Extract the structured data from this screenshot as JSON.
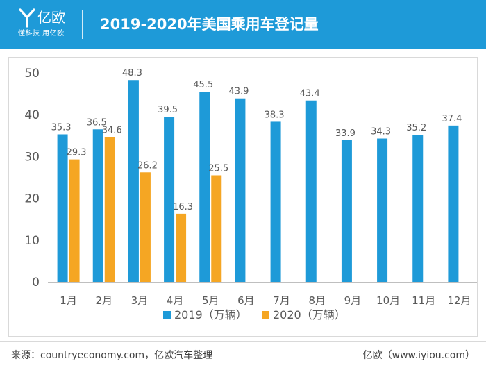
{
  "header": {
    "logo_name": "亿欧",
    "logo_slogan": "懂科技 用亿欧",
    "title": "2019-2020年美国乘用车登记量"
  },
  "colors": {
    "header_bg": "#1e9ad8",
    "series_2019": "#1e9ad8",
    "series_2020": "#f5a623",
    "axis_text": "#595959"
  },
  "chart_data": {
    "type": "bar",
    "title": "2019-2020年美国乘用车登记量",
    "xlabel": "",
    "ylabel": "",
    "ylim": [
      0,
      50
    ],
    "yticks": [
      0,
      10,
      20,
      30,
      40,
      50
    ],
    "grid": false,
    "legend_position": "bottom-center",
    "categories": [
      "1月",
      "2月",
      "3月",
      "4月",
      "5月",
      "6月",
      "7月",
      "8月",
      "9月",
      "10月",
      "11月",
      "12月"
    ],
    "series": [
      {
        "name": "2019（万辆）",
        "values": [
          35.3,
          36.5,
          48.3,
          39.5,
          45.5,
          43.9,
          38.3,
          43.4,
          33.9,
          34.3,
          35.2,
          37.4
        ],
        "labels": [
          "35.3",
          "36.5",
          "48.3",
          "39.5",
          "45.5",
          "43.9",
          "38.3",
          "43.4",
          "33.9",
          "34.3",
          "35.2",
          "37.4"
        ]
      },
      {
        "name": "2020（万辆）",
        "values": [
          29.3,
          34.6,
          26.2,
          16.3,
          25.5,
          null,
          null,
          null,
          null,
          null,
          null,
          null
        ],
        "labels": [
          "29.3",
          "34.6",
          "26.2",
          "16.3",
          "25.5",
          null,
          null,
          null,
          null,
          null,
          null,
          null
        ]
      }
    ]
  },
  "footer": {
    "source": "来源：countryeconomy.com，亿欧汽车整理",
    "site": "亿欧（www.iyiou.com）"
  }
}
